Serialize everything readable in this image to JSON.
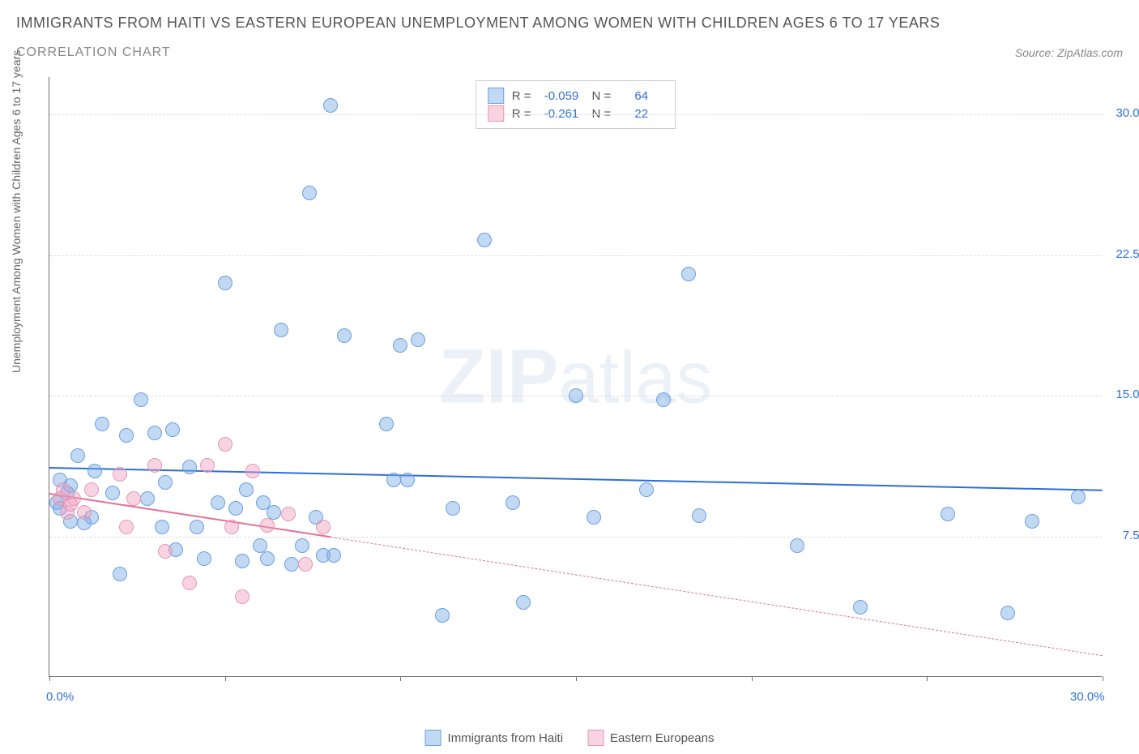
{
  "title": "IMMIGRANTS FROM HAITI VS EASTERN EUROPEAN UNEMPLOYMENT AMONG WOMEN WITH CHILDREN AGES 6 TO 17 YEARS",
  "subtitle": "CORRELATION CHART",
  "source": "Source: ZipAtlas.com",
  "ylabel": "Unemployment Among Women with Children Ages 6 to 17 years",
  "watermark_bold": "ZIP",
  "watermark_light": "atlas",
  "chart": {
    "type": "scatter",
    "xlim": [
      0,
      30
    ],
    "ylim": [
      0,
      32
    ],
    "x_ticks_minor": [
      0,
      5,
      10,
      15,
      20,
      25,
      30
    ],
    "x_tick_labels": [
      {
        "v": 0,
        "label": "0.0%"
      },
      {
        "v": 30,
        "label": "30.0%"
      }
    ],
    "y_tick_labels": [
      {
        "v": 7.5,
        "label": "7.5%"
      },
      {
        "v": 15,
        "label": "15.0%"
      },
      {
        "v": 22.5,
        "label": "22.5%"
      },
      {
        "v": 30,
        "label": "30.0%"
      }
    ],
    "grid_color": "#dddddd",
    "background_color": "#ffffff",
    "point_radius": 9,
    "series": [
      {
        "name": "Immigrants from Haiti",
        "fill": "rgba(120, 170, 230, 0.45)",
        "stroke": "#6b9fe0",
        "trend_color": "#2d6fd6",
        "trend_width": 2.5,
        "trend_dash": "solid",
        "trend": {
          "x0": 0,
          "y0": 11.2,
          "x1": 30,
          "y1": 10.0
        },
        "extrapolate": false,
        "R": "-0.059",
        "N": "64",
        "points": [
          [
            0.2,
            9.3
          ],
          [
            0.3,
            10.5
          ],
          [
            0.3,
            9.0
          ],
          [
            0.5,
            9.8
          ],
          [
            0.6,
            8.3
          ],
          [
            0.8,
            11.8
          ],
          [
            1.2,
            8.5
          ],
          [
            1.3,
            11.0
          ],
          [
            1.5,
            13.5
          ],
          [
            1.8,
            9.8
          ],
          [
            2.0,
            5.5
          ],
          [
            2.2,
            12.9
          ],
          [
            2.6,
            14.8
          ],
          [
            2.8,
            9.5
          ],
          [
            3.0,
            13.0
          ],
          [
            3.2,
            8.0
          ],
          [
            3.3,
            10.4
          ],
          [
            3.5,
            13.2
          ],
          [
            3.6,
            6.8
          ],
          [
            4.0,
            11.2
          ],
          [
            4.2,
            8.0
          ],
          [
            4.4,
            6.3
          ],
          [
            4.8,
            9.3
          ],
          [
            5.0,
            21.0
          ],
          [
            5.3,
            9.0
          ],
          [
            5.5,
            6.2
          ],
          [
            5.6,
            10.0
          ],
          [
            6.0,
            7.0
          ],
          [
            6.1,
            9.3
          ],
          [
            6.2,
            6.3
          ],
          [
            6.6,
            18.5
          ],
          [
            6.9,
            6.0
          ],
          [
            7.2,
            7.0
          ],
          [
            7.4,
            25.8
          ],
          [
            7.6,
            8.5
          ],
          [
            7.8,
            6.5
          ],
          [
            8.0,
            30.5
          ],
          [
            8.1,
            6.5
          ],
          [
            8.4,
            18.2
          ],
          [
            9.6,
            13.5
          ],
          [
            9.8,
            10.5
          ],
          [
            10.0,
            17.7
          ],
          [
            10.2,
            10.5
          ],
          [
            10.5,
            18.0
          ],
          [
            11.2,
            3.3
          ],
          [
            11.5,
            9.0
          ],
          [
            12.4,
            23.3
          ],
          [
            13.2,
            9.3
          ],
          [
            13.5,
            4.0
          ],
          [
            15.0,
            15.0
          ],
          [
            15.5,
            8.5
          ],
          [
            17.0,
            10.0
          ],
          [
            17.5,
            14.8
          ],
          [
            18.2,
            21.5
          ],
          [
            18.5,
            8.6
          ],
          [
            21.3,
            7.0
          ],
          [
            23.1,
            3.7
          ],
          [
            25.6,
            8.7
          ],
          [
            27.3,
            3.4
          ],
          [
            28.0,
            8.3
          ],
          [
            29.3,
            9.6
          ],
          [
            0.6,
            10.2
          ],
          [
            1.0,
            8.2
          ],
          [
            6.4,
            8.8
          ]
        ]
      },
      {
        "name": "Eastern Europeans",
        "fill": "rgba(240, 160, 190, 0.45)",
        "stroke": "#e597b4",
        "trend_color": "#e46f98",
        "trend_width": 2,
        "trend_dash": "solid",
        "trend": {
          "x0": 0,
          "y0": 9.8,
          "x1": 8,
          "y1": 7.5
        },
        "extrapolate": true,
        "extrap_to_x": 30,
        "R": "-0.261",
        "N": "22",
        "points": [
          [
            0.3,
            9.5
          ],
          [
            0.4,
            10.0
          ],
          [
            0.5,
            8.8
          ],
          [
            0.6,
            9.2
          ],
          [
            0.7,
            9.5
          ],
          [
            1.0,
            8.8
          ],
          [
            1.2,
            10.0
          ],
          [
            2.0,
            10.8
          ],
          [
            2.2,
            8.0
          ],
          [
            2.4,
            9.5
          ],
          [
            3.0,
            11.3
          ],
          [
            3.3,
            6.7
          ],
          [
            4.0,
            5.0
          ],
          [
            4.5,
            11.3
          ],
          [
            5.0,
            12.4
          ],
          [
            5.2,
            8.0
          ],
          [
            5.5,
            4.3
          ],
          [
            5.8,
            11.0
          ],
          [
            6.2,
            8.1
          ],
          [
            6.8,
            8.7
          ],
          [
            7.3,
            6.0
          ],
          [
            7.8,
            8.0
          ]
        ]
      }
    ]
  },
  "legend_labels": {
    "series1": "Immigrants from Haiti",
    "series2": "Eastern Europeans"
  },
  "stat_labels": {
    "R": "R =",
    "N": "N ="
  }
}
